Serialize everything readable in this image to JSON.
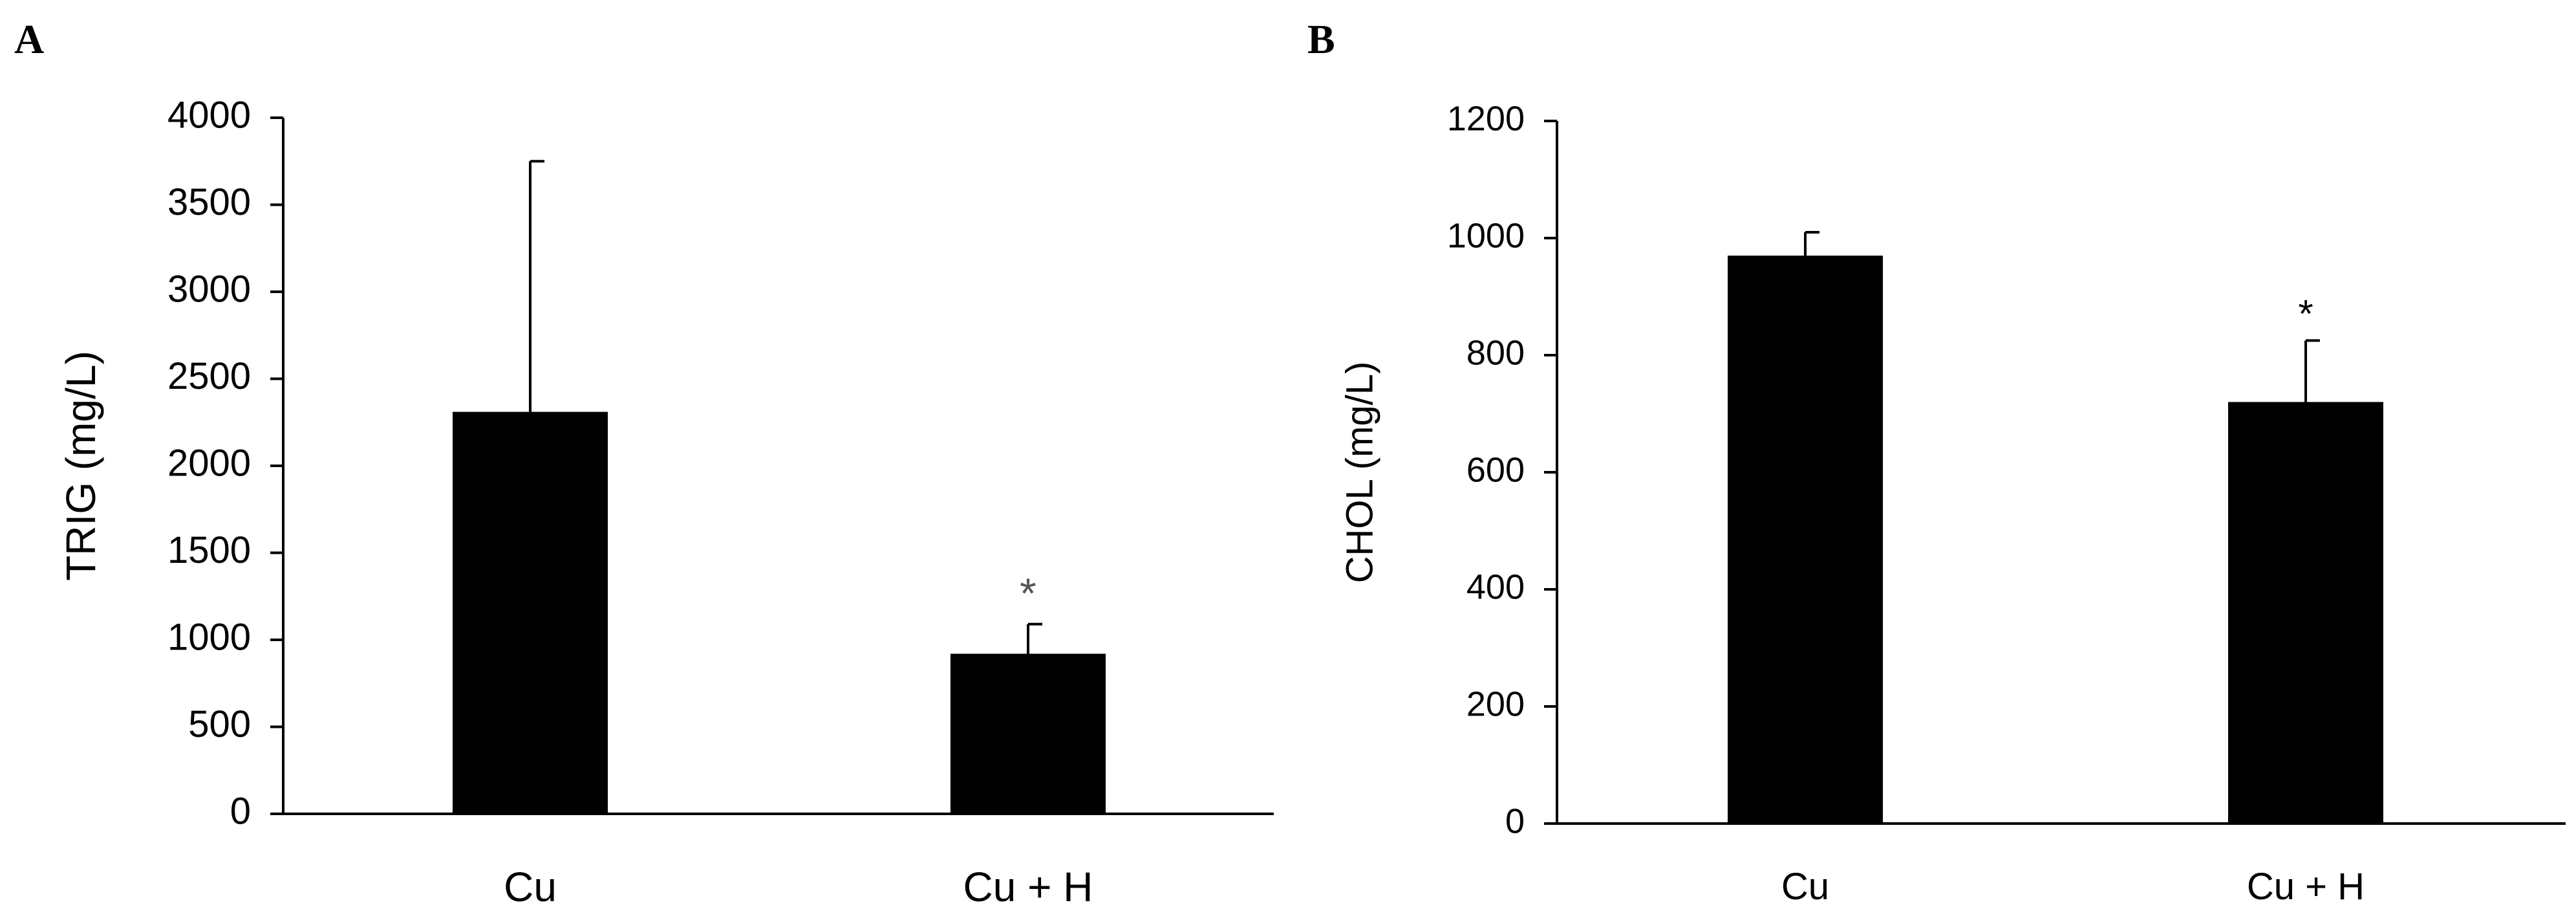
{
  "chart_data": [
    {
      "type": "bar",
      "panel_label": "A",
      "ylabel": "TRIG (mg/L)",
      "categories": [
        "Cu",
        "Cu + H"
      ],
      "values": [
        2310,
        920
      ],
      "error_upper": [
        3750,
        1090
      ],
      "annotations": [
        {
          "category": "Cu + H",
          "text": "*"
        }
      ],
      "annotation_color": "#555555",
      "ylim": [
        0,
        4000
      ],
      "yticks": [
        "0",
        "500",
        "1000",
        "1500",
        "2000",
        "2500",
        "3000",
        "3500",
        "4000"
      ],
      "bar_color": "#000000",
      "grid": false
    },
    {
      "type": "bar",
      "panel_label": "B",
      "ylabel": "CHOL (mg/L)",
      "categories": [
        "Cu",
        "Cu + H"
      ],
      "values": [
        970,
        720
      ],
      "error_upper": [
        1010,
        825
      ],
      "annotations": [
        {
          "category": "Cu + H",
          "text": "*"
        }
      ],
      "annotation_color": "#000000",
      "ylim": [
        0,
        1200
      ],
      "yticks": [
        "0",
        "200",
        "400",
        "600",
        "800",
        "1000",
        "1200"
      ],
      "bar_color": "#000000",
      "grid": false
    }
  ]
}
